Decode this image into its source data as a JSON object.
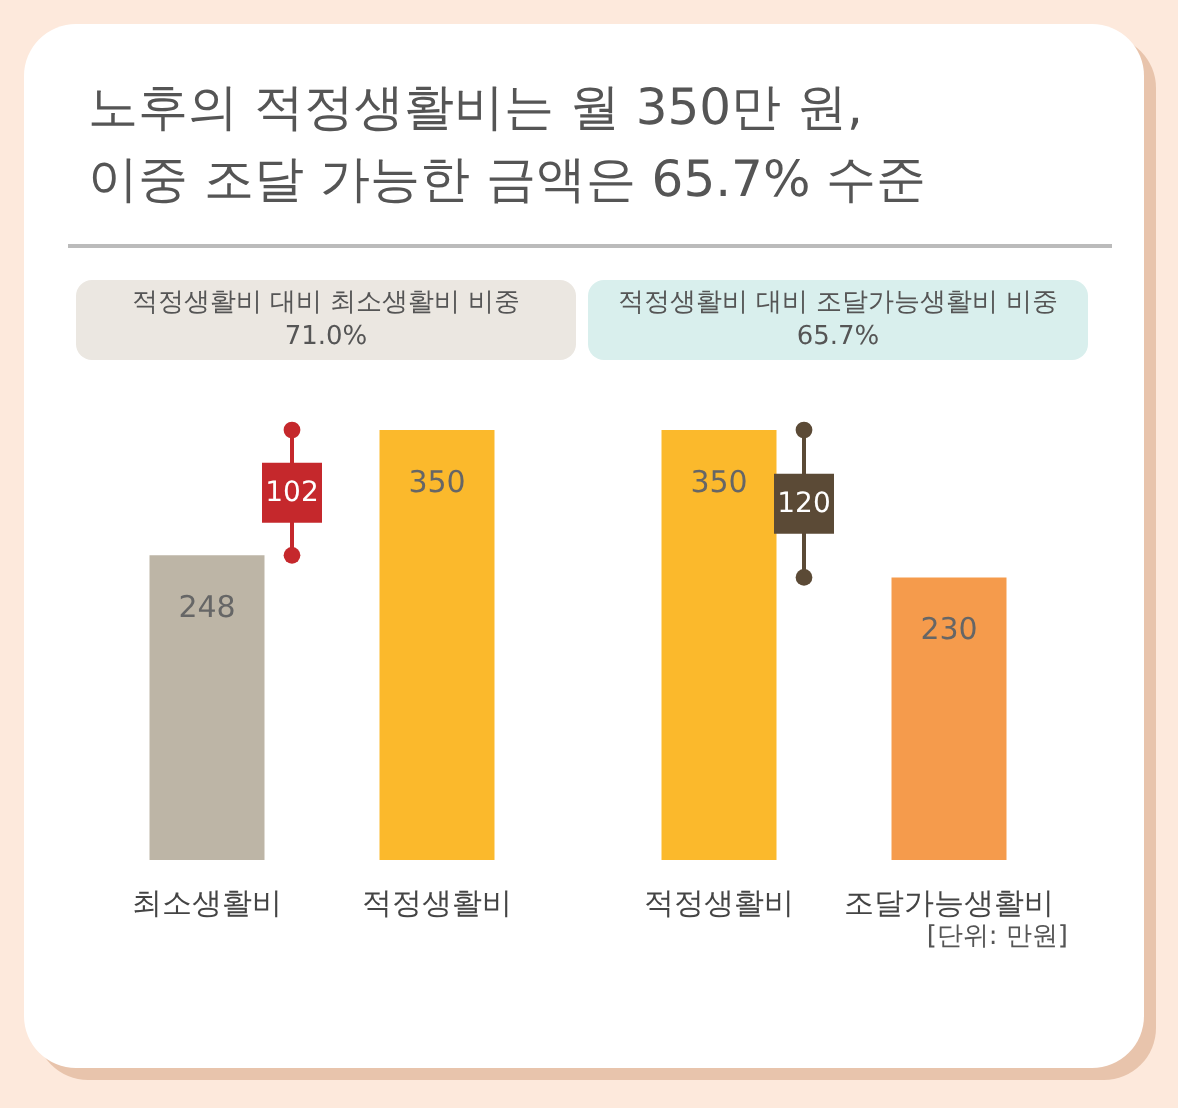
{
  "chart_data": [
    {
      "type": "bar",
      "title": "노후의 적정생활비는 월 350만 원,\n이중 조달 가능한 금액은 65.7% 수준",
      "subtitle": "적정생활비 대비 최소생활비 비중\n71.0%",
      "categories": [
        "최소생활비",
        "적정생활비"
      ],
      "values": [
        248,
        350
      ],
      "colors": [
        "#bdb5a6",
        "#fbb92c"
      ],
      "data_labels": true,
      "annotations": [
        "102"
      ]
    },
    {
      "type": "bar",
      "subtitle": "적정생활비 대비 조달가능생활비 비중\n65.7%",
      "categories": [
        "적정생활비",
        "조달가능생활비"
      ],
      "values": [
        350,
        230
      ],
      "colors": [
        "#fbb92c",
        "#f59b4c"
      ],
      "data_labels": true,
      "annotations": [
        "120",
        "[단위: 만원]"
      ]
    }
  ]
}
